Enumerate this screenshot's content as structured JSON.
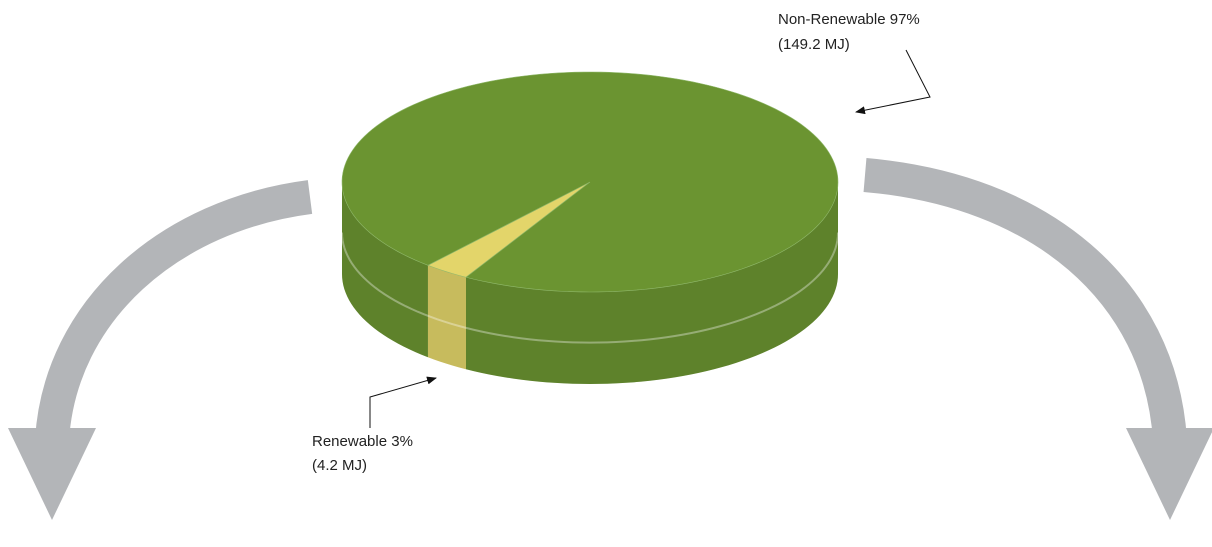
{
  "chart_data": {
    "type": "pie3d",
    "categories": [
      "Renewable",
      "Non-Renewable"
    ],
    "values": [
      3,
      97
    ],
    "value_labels": [
      "3%",
      "97%"
    ],
    "energy_values": [
      4.2,
      149.2
    ],
    "energy_labels": [
      "(4.2 MJ)",
      "(149.2 MJ)"
    ],
    "colors": [
      "#e3d56a",
      "#6b9431"
    ]
  }
}
